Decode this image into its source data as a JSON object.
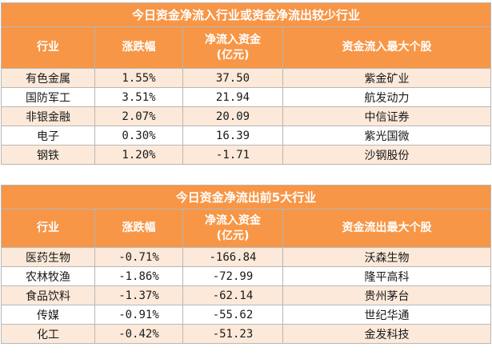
{
  "inflow": {
    "title": "今日资金净流入行业或资金净流出较少行业",
    "headers": [
      "行业",
      "涨跌幅",
      "净流入资金\n(亿元)",
      "资金流入最大个股"
    ],
    "rows": [
      [
        "有色金属",
        "1.55%",
        "37.50",
        "紫金矿业"
      ],
      [
        "国防军工",
        "3.51%",
        "21.94",
        "航发动力"
      ],
      [
        "非银金融",
        "2.07%",
        "20.09",
        "中信证券"
      ],
      [
        "电子",
        "0.30%",
        "16.39",
        "紫光国微"
      ],
      [
        "钢铁",
        "1.20%",
        "-1.71",
        "沙钢股份"
      ]
    ]
  },
  "outflow": {
    "title": "今日资金净流出前5大行业",
    "headers": [
      "行业",
      "涨跌幅",
      "净流入资金\n(亿元)",
      "资金流出最大个股"
    ],
    "rows": [
      [
        "医药生物",
        "-0.71%",
        "-166.84",
        "沃森生物"
      ],
      [
        "农林牧渔",
        "-1.86%",
        "-72.99",
        "隆平高科"
      ],
      [
        "食品饮料",
        "-1.37%",
        "-62.14",
        "贵州茅台"
      ],
      [
        "传媒",
        "-0.91%",
        "-55.62",
        "世纪华通"
      ],
      [
        "化工",
        "-0.42%",
        "-51.23",
        "金发科技"
      ]
    ]
  },
  "colors": {
    "header_bg": "#f79646",
    "stripe_bg": "#fde9d9",
    "header_text": "#ffffff"
  }
}
